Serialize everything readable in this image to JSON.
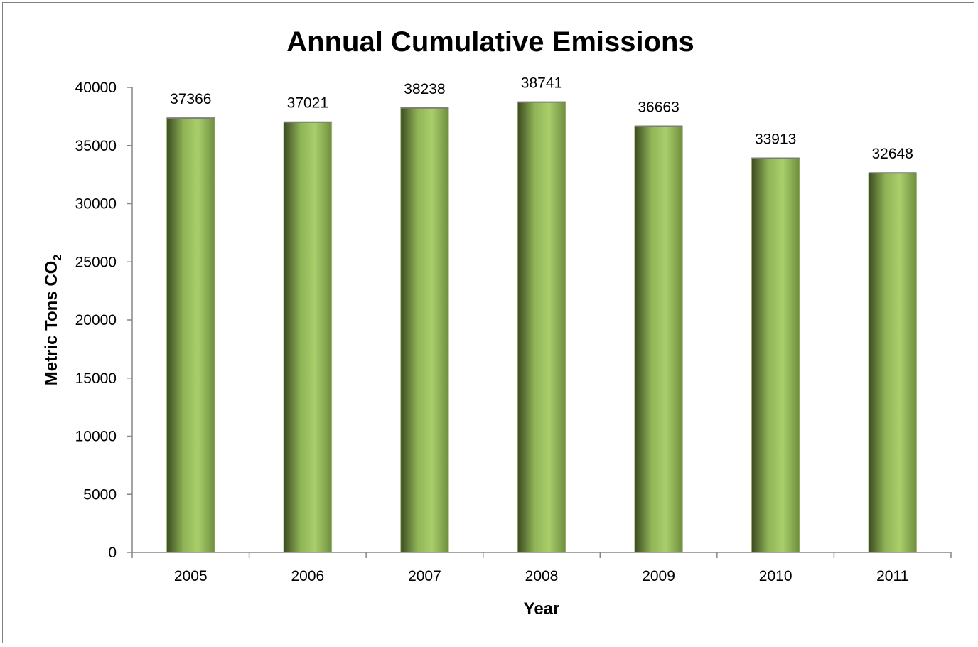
{
  "chart_data": {
    "type": "bar",
    "title": "Annual Cumulative Emissions",
    "xlabel": "Year",
    "ylabel": "Metric Tons CO",
    "ylabel_subscript": "2",
    "categories": [
      "2005",
      "2006",
      "2007",
      "2008",
      "2009",
      "2010",
      "2011"
    ],
    "series": [
      {
        "values": [
          37366,
          37021,
          38238,
          38741,
          36663,
          33913,
          32648
        ]
      }
    ],
    "ylim": [
      0,
      40000
    ],
    "yticks": [
      0,
      5000,
      10000,
      15000,
      20000,
      25000,
      30000,
      35000,
      40000
    ],
    "grid": false,
    "legend": "none",
    "data_labels": true,
    "colors": {
      "bar_light": "#a9cf6b",
      "bar_dark": "#3b4a22",
      "axis": "#868686",
      "border": "#7f7f7f"
    }
  }
}
